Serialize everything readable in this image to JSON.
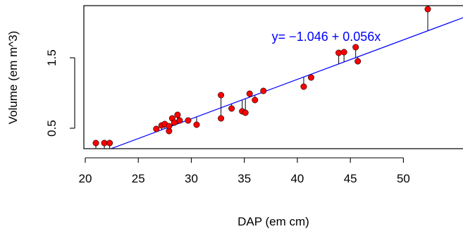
{
  "chart_data": {
    "type": "scatter",
    "xlabel": "DAP (em cm)",
    "ylabel": "Volume (em m^3)",
    "xlim": [
      20,
      53.5
    ],
    "ylim": [
      0.2,
      2.2
    ],
    "x_ticks": [
      20,
      25,
      30,
      35,
      40,
      45,
      50
    ],
    "x_tick_labels": [
      "20",
      "25",
      "30",
      "35",
      "40",
      "45",
      "50"
    ],
    "y_ticks": [
      0.5,
      1.5
    ],
    "y_tick_labels": [
      "0.5",
      "1.5"
    ],
    "grid": false,
    "legend": "none",
    "regression": {
      "intercept": -1.046,
      "slope": 0.056,
      "label": "y= −1.046 + 0.056x",
      "color": "#0000ff"
    },
    "point_color": "#ff0000",
    "residual_color": "#000000",
    "points": [
      {
        "x": 21.0,
        "y": 0.29
      },
      {
        "x": 21.8,
        "y": 0.29
      },
      {
        "x": 22.3,
        "y": 0.29
      },
      {
        "x": 26.7,
        "y": 0.49
      },
      {
        "x": 27.2,
        "y": 0.54
      },
      {
        "x": 27.5,
        "y": 0.56
      },
      {
        "x": 27.9,
        "y": 0.46
      },
      {
        "x": 27.9,
        "y": 0.53
      },
      {
        "x": 28.2,
        "y": 0.64
      },
      {
        "x": 28.4,
        "y": 0.58
      },
      {
        "x": 28.7,
        "y": 0.69
      },
      {
        "x": 28.9,
        "y": 0.61
      },
      {
        "x": 29.7,
        "y": 0.61
      },
      {
        "x": 30.5,
        "y": 0.55
      },
      {
        "x": 32.8,
        "y": 0.97
      },
      {
        "x": 32.8,
        "y": 0.64
      },
      {
        "x": 33.8,
        "y": 0.78
      },
      {
        "x": 34.8,
        "y": 0.74
      },
      {
        "x": 35.1,
        "y": 0.72
      },
      {
        "x": 35.5,
        "y": 0.99
      },
      {
        "x": 36.0,
        "y": 0.9
      },
      {
        "x": 36.8,
        "y": 1.03
      },
      {
        "x": 40.6,
        "y": 1.09
      },
      {
        "x": 41.3,
        "y": 1.22
      },
      {
        "x": 43.9,
        "y": 1.57
      },
      {
        "x": 44.4,
        "y": 1.58
      },
      {
        "x": 45.5,
        "y": 1.65
      },
      {
        "x": 45.7,
        "y": 1.45
      },
      {
        "x": 52.3,
        "y": 2.19
      }
    ]
  }
}
